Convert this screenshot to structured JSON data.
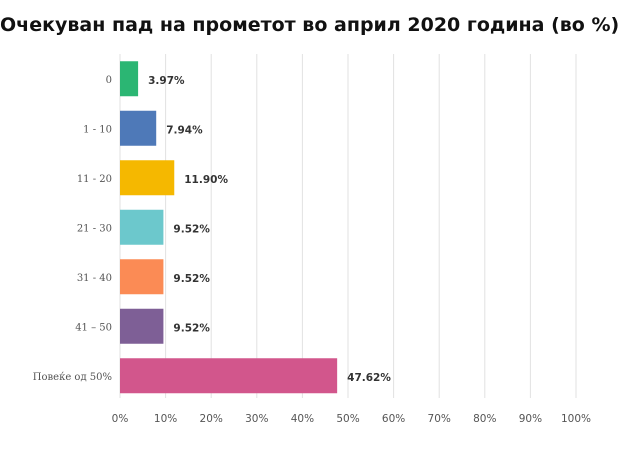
{
  "chart_data": {
    "type": "bar",
    "orientation": "horizontal",
    "title": "Очекуван пад на прометот во април 2020 година (во %)",
    "categories": [
      "0",
      "1 - 10",
      "11 - 20",
      "21 - 30",
      "31 - 40",
      "41 – 50",
      "Повеќе од 50%"
    ],
    "values": [
      3.97,
      7.94,
      11.9,
      9.52,
      9.52,
      9.52,
      47.62
    ],
    "value_labels": [
      "3.97%",
      "7.94%",
      "11.90%",
      "9.52%",
      "9.52%",
      "9.52%",
      "47.62%"
    ],
    "colors": [
      "#2bb673",
      "#4e79b8",
      "#f5b800",
      "#6cc8cc",
      "#fb8b55",
      "#7e5f96",
      "#d2568c"
    ],
    "xlim": [
      0,
      100
    ],
    "xticks": [
      0,
      10,
      20,
      30,
      40,
      50,
      60,
      70,
      80,
      90,
      100
    ],
    "xtick_labels": [
      "0%",
      "10%",
      "20%",
      "30%",
      "40%",
      "50%",
      "60%",
      "70%",
      "80%",
      "90%",
      "100%"
    ],
    "grid": true,
    "xlabel": "",
    "ylabel": ""
  }
}
